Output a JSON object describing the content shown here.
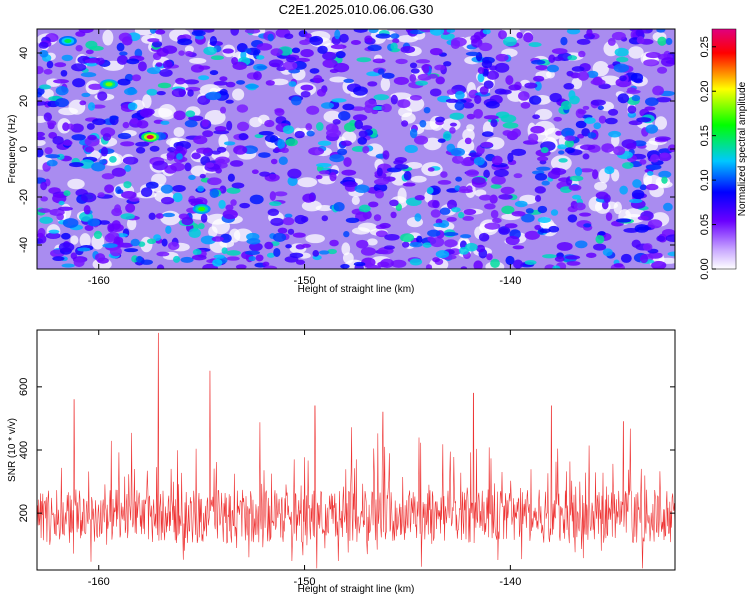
{
  "title": "C2E1.2025.010.06.06.G30",
  "chart_data": [
    {
      "type": "heatmap",
      "xlabel": "Height of straight line (km)",
      "ylabel": "Frequency (Hz)",
      "xlim": [
        -163,
        -132
      ],
      "ylim": [
        -50,
        50
      ],
      "x_ticks": [
        -160,
        -150,
        -140
      ],
      "y_ticks": [
        -40,
        -20,
        0,
        20,
        40
      ],
      "colorbar": {
        "label": "Normalized spectral amplitude",
        "range": [
          0.0,
          0.27
        ],
        "ticks": [
          "0.00",
          "0.05",
          "0.10",
          "0.15",
          "0.20",
          "0.25"
        ],
        "colors": [
          "#ffffff",
          "#6a00ff",
          "#0000ff",
          "#00c8ff",
          "#00ff00",
          "#ffff00",
          "#ff0000",
          "#e0007f"
        ]
      },
      "features": [
        {
          "x": -157.5,
          "y": 5,
          "value": 0.26
        },
        {
          "x": -159.5,
          "y": 27,
          "value": 0.18
        },
        {
          "x": -155,
          "y": -25,
          "value": 0.17
        },
        {
          "x": -161.5,
          "y": 45,
          "value": 0.15
        }
      ]
    },
    {
      "type": "line",
      "xlabel": "Height of straight line (km)",
      "ylabel": "SNR (10 * v/v)",
      "xlim": [
        -163,
        -132
      ],
      "ylim": [
        20,
        780
      ],
      "x_ticks": [
        -160,
        -150,
        -140
      ],
      "y_ticks": [
        200,
        400,
        600
      ],
      "series": [
        {
          "color": "#ee3333",
          "peaks": [
            {
              "x": -157.1,
              "y": 770
            },
            {
              "x": -154.6,
              "y": 650
            },
            {
              "x": -161.2,
              "y": 560
            },
            {
              "x": -141.8,
              "y": 580
            },
            {
              "x": -146.2,
              "y": 520
            },
            {
              "x": -149.5,
              "y": 540
            },
            {
              "x": -138.0,
              "y": 540
            },
            {
              "x": -134.5,
              "y": 490
            }
          ]
        }
      ]
    }
  ]
}
